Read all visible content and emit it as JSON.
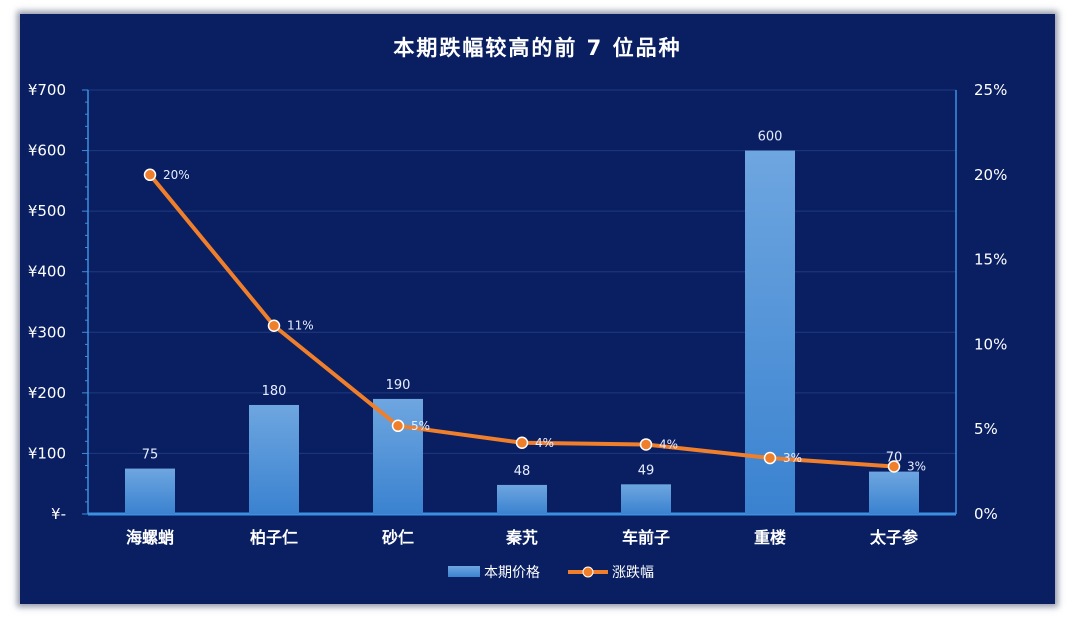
{
  "chart_data": {
    "type": "bar",
    "title": "本期跌幅较高的前 7 位品种",
    "categories": [
      "海螺蛸",
      "柏子仁",
      "砂仁",
      "秦艽",
      "车前子",
      "重楼",
      "太子参"
    ],
    "series": [
      {
        "name": "本期价格",
        "type": "bar",
        "axis": "left",
        "values": [
          75,
          180,
          190,
          48,
          49,
          600,
          70
        ],
        "labels": [
          "75",
          "180",
          "190",
          "48",
          "49",
          "600",
          "70"
        ]
      },
      {
        "name": "涨跌幅",
        "type": "line",
        "axis": "right",
        "values": [
          0.2,
          0.111,
          0.052,
          0.042,
          0.041,
          0.033,
          0.028
        ],
        "labels": [
          "20%",
          "11%",
          "5%",
          "4%",
          "4%",
          "3%",
          "3%"
        ]
      }
    ],
    "y_left": {
      "min": 0,
      "max": 700,
      "step": 100,
      "tick_labels": [
        "¥-",
        "¥100",
        "¥200",
        "¥300",
        "¥400",
        "¥500",
        "¥600",
        "¥700"
      ]
    },
    "y_right": {
      "min": 0,
      "max": 0.25,
      "step": 0.05,
      "tick_labels": [
        "0%",
        "5%",
        "10%",
        "15%",
        "20%",
        "25%"
      ]
    },
    "grid": true,
    "legend_position": "bottom",
    "colors": {
      "background": "#0a1f62",
      "bar_top": "#6ea6e0",
      "bar_bottom": "#3a82d0",
      "line": "#f07f2c",
      "grid": "#1f3a80",
      "axis": "#3d8fe0"
    }
  }
}
